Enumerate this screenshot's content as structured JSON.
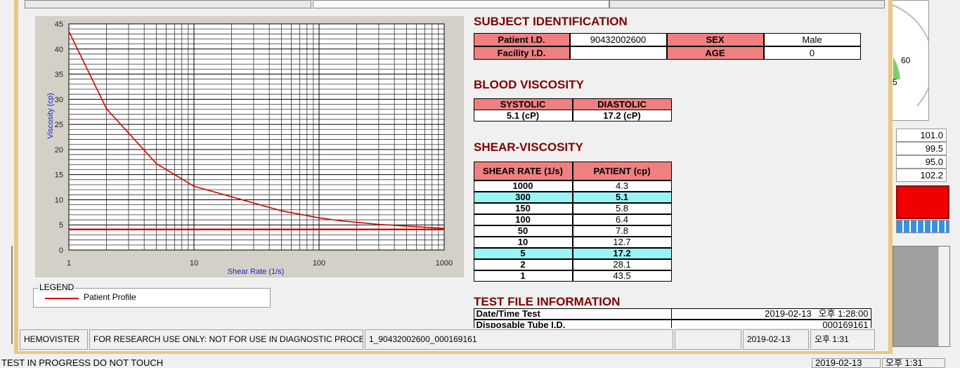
{
  "chart_data": {
    "type": "line",
    "x_label": "Shear Rate (1/s)",
    "y_label": "Viscosity (cp)",
    "x": [
      1,
      2,
      5,
      10,
      50,
      100,
      150,
      300,
      1000
    ],
    "series": [
      {
        "name": "Patient Profile",
        "color": "#d40000",
        "values": [
          43.5,
          28.1,
          17.2,
          12.7,
          7.8,
          6.4,
          5.8,
          5.1,
          4.3
        ]
      },
      {
        "color": "#d40000",
        "values": [
          4.1,
          4.1,
          4.1,
          4.1,
          4.1,
          4.1,
          4.1,
          4.1,
          4.1
        ]
      }
    ],
    "xlim": [
      1,
      1000
    ],
    "xticks": [
      1,
      10,
      100,
      1000
    ],
    "log_x": true,
    "xminorticks": [
      2,
      3,
      4,
      5,
      6,
      7,
      8,
      9,
      20,
      30,
      40,
      50,
      60,
      70,
      80,
      90,
      200,
      300,
      400,
      500,
      600,
      700,
      800,
      900
    ],
    "ylim": [
      0,
      45
    ],
    "yticks": [
      0,
      5,
      10,
      15,
      20,
      25,
      30,
      35,
      40,
      45
    ],
    "yminorticks": [
      1,
      2,
      3,
      4,
      6,
      7,
      8,
      9,
      11,
      12,
      13,
      14,
      16,
      17,
      18,
      19,
      21,
      22,
      23,
      24,
      26,
      27,
      28,
      29,
      31,
      32,
      33,
      34,
      36,
      37,
      38,
      39,
      41,
      42,
      43,
      44
    ],
    "grid": true,
    "legend_title": "LEGEND"
  },
  "subject_identification": {
    "title": "SUBJECT IDENTIFICATION",
    "rows": [
      [
        "Patient I.D.",
        "90432002600",
        "SEX",
        "Male"
      ],
      [
        "Facility I.D.",
        null,
        "AGE",
        "0"
      ]
    ]
  },
  "blood_viscosity": {
    "title": "BLOOD VISCOSITY",
    "headers": [
      "SYSTOLIC",
      "DIASTOLIC"
    ],
    "values": [
      "5.1 (cP)",
      "17.2 (cP)"
    ]
  },
  "shear_viscosity": {
    "title": "SHEAR-VISCOSITY",
    "headers": [
      "SHEAR RATE (1/s)",
      "PATIENT (cp)"
    ],
    "rows": [
      [
        "1000",
        "4.3"
      ],
      [
        "300",
        "5.1"
      ],
      [
        "150",
        "5.8"
      ],
      [
        "100",
        "6.4"
      ],
      [
        "50",
        "7.8"
      ],
      [
        "10",
        "12.7"
      ],
      [
        "5",
        "17.2"
      ],
      [
        "2",
        "28.1"
      ],
      [
        "1",
        "43.5"
      ]
    ],
    "highlight_rows": [
      1,
      6
    ]
  },
  "test_file_information": {
    "title": "TEST FILE INFORMATION",
    "rows": [
      [
        "Date/Time Test",
        "2019-02-13",
        "오후 1:28:00"
      ],
      [
        "Disposable Tube I.D.",
        "000169161"
      ]
    ]
  },
  "status_bar": [
    "HEMOVISTER",
    "FOR RESEARCH USE ONLY: NOT FOR USE IN DIAGNOSTIC PROCEDURES",
    "1_90432002600_000169161",
    null,
    "2019-02-13",
    "오후 1:31"
  ],
  "background": {
    "gauge_labels": [
      "60",
      "5"
    ],
    "readings": [
      "101.0",
      "99.5",
      "95.0",
      "102.2"
    ],
    "footer": [
      "TEST IN PROGRESS DO NOT TOUCH",
      "2019-02-13",
      "오후 1:31"
    ]
  }
}
